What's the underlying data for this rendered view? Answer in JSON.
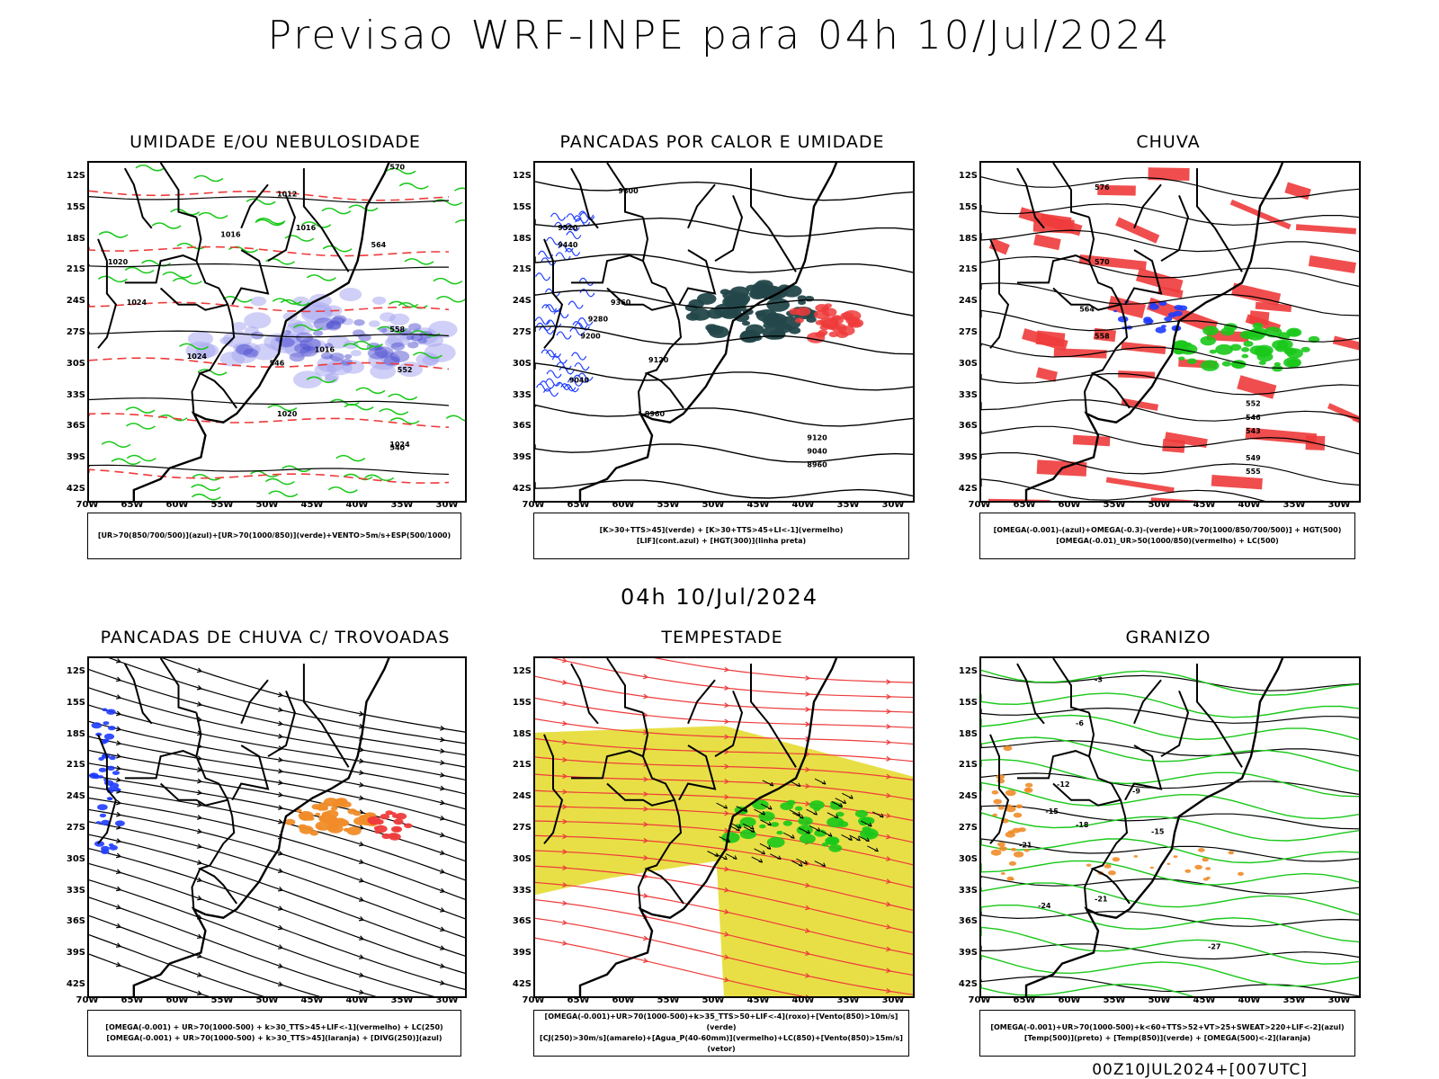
{
  "header": {
    "title": "Previsao WRF-INPE  para 04h 10/Jul/2024",
    "subtitle": "04h 10/Jul/2024",
    "footer": "00Z10JUL2024+[007UTC]"
  },
  "axes": {
    "lat_labels": [
      "12S",
      "15S",
      "18S",
      "21S",
      "24S",
      "27S",
      "30S",
      "33S",
      "36S",
      "39S",
      "42S"
    ],
    "lon_labels": [
      "70W",
      "65W",
      "60W",
      "55W",
      "50W",
      "45W",
      "40W",
      "35W",
      "30W"
    ]
  },
  "panels": [
    {
      "title": "UMIDADE E/OU NEBULOSIDADE",
      "legend": [
        "[UR>70(850/700/500)](azul)+[UR>70(1000/850)](verde)+VENTO>5m/s+ESP(500/1000)"
      ],
      "labels": [
        "1012",
        "1016",
        "1016",
        "1020",
        "1024",
        "1024",
        "1016",
        "1020",
        "1024",
        "570",
        "564",
        "558",
        "552",
        "546",
        "540"
      ]
    },
    {
      "title": "PANCADAS POR CALOR E UMIDADE",
      "legend": [
        "[K>30+TTS>45](verde) + [K>30+TTS>45+LI<-1](vermelho)",
        "[LIF](cont.azul) + [HGT(300)](linha preta)"
      ],
      "labels": [
        "9600",
        "9520",
        "9440",
        "9360",
        "9280",
        "9200",
        "9120",
        "9040",
        "8960",
        "9120",
        "9040",
        "8960"
      ]
    },
    {
      "title": "CHUVA",
      "legend": [
        "[OMEGA(-0.001)-(azul)+OMEGA(-0.3)-(verde)+UR>70(1000/850/700/500)] + HGT(500)",
        "[OMEGA(-0.01)_UR>50(1000/850)(vermelho) + LC(500)"
      ],
      "labels": [
        "576",
        "570",
        "564",
        "558",
        "552",
        "546",
        "543",
        "549",
        "555"
      ]
    },
    {
      "title": "PANCADAS DE CHUVA C/ TROVOADAS",
      "legend": [
        "[OMEGA(-0.001) + UR>70(1000-500) + k>30_TTS>45+LIF<-1](vermelho) + LC(250)",
        "[OMEGA(-0.001) + UR>70(1000-500) + k>30_TTS>45](laranja) + [DIVG(250)](azul)"
      ],
      "labels": []
    },
    {
      "title": "TEMPESTADE",
      "legend": [
        "[OMEGA(-0.001)+UR>70(1000-500)+k>35_TTS>50+LIF<-4](roxo)+[Vento(850)>10m/s](verde)",
        "[CJ(250)>30m/s](amarelo)+[Agua_P(40-60mm)](vermelho)+LC(850)+[Vento(850)>15m/s](vetor)"
      ],
      "labels": []
    },
    {
      "title": "GRANIZO",
      "legend": [
        "[OMEGA(-0.001)+UR>70(1000-500)+k<60+TTS>52+VT>25+SWEAT>220+LIF<-2](azul)",
        "[Temp(500)](preto) + [Temp(850)](verde) + [OMEGA(500)<-2](laranja)"
      ],
      "labels": [
        "-3",
        "-6",
        "-9",
        "-12",
        "-15",
        "-18",
        "-21",
        "-24",
        "-27",
        "-15",
        "-21"
      ]
    }
  ],
  "colors": {
    "green": "#19c819",
    "red": "#ee3b3b",
    "blue": "#1e3cff",
    "lightblue": "#a8a8f0",
    "darkteal": "#23474a",
    "orange": "#f08c28",
    "yellow": "#e6dc32"
  }
}
